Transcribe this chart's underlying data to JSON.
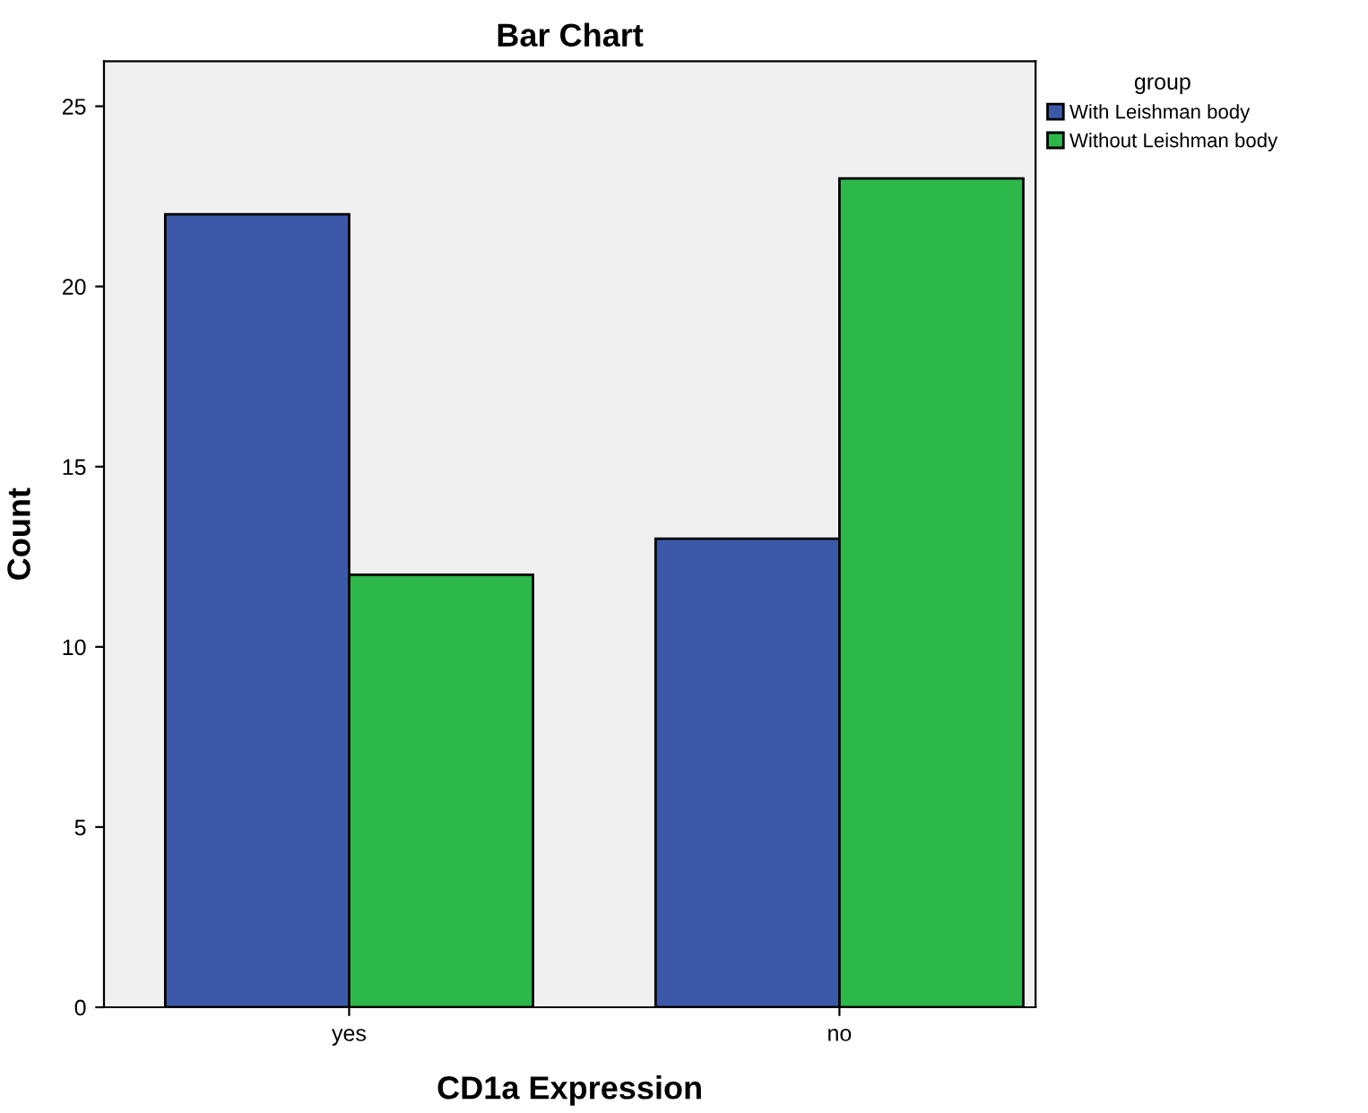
{
  "chart_data": {
    "type": "bar",
    "title": "Bar Chart",
    "xlabel": "CD1a Expression",
    "ylabel": "Count",
    "legend_title": "group",
    "categories": [
      "yes",
      "no"
    ],
    "series": [
      {
        "name": "With Leishman body",
        "color": "#3c58a8",
        "values": [
          22,
          13
        ]
      },
      {
        "name": "Without Leishman body",
        "color": "#2db84a",
        "values": [
          12,
          23
        ]
      }
    ],
    "ylim": [
      0,
      26.25
    ],
    "yticks": [
      0,
      5,
      10,
      15,
      20,
      25
    ],
    "grid": false,
    "legend": "top right"
  }
}
